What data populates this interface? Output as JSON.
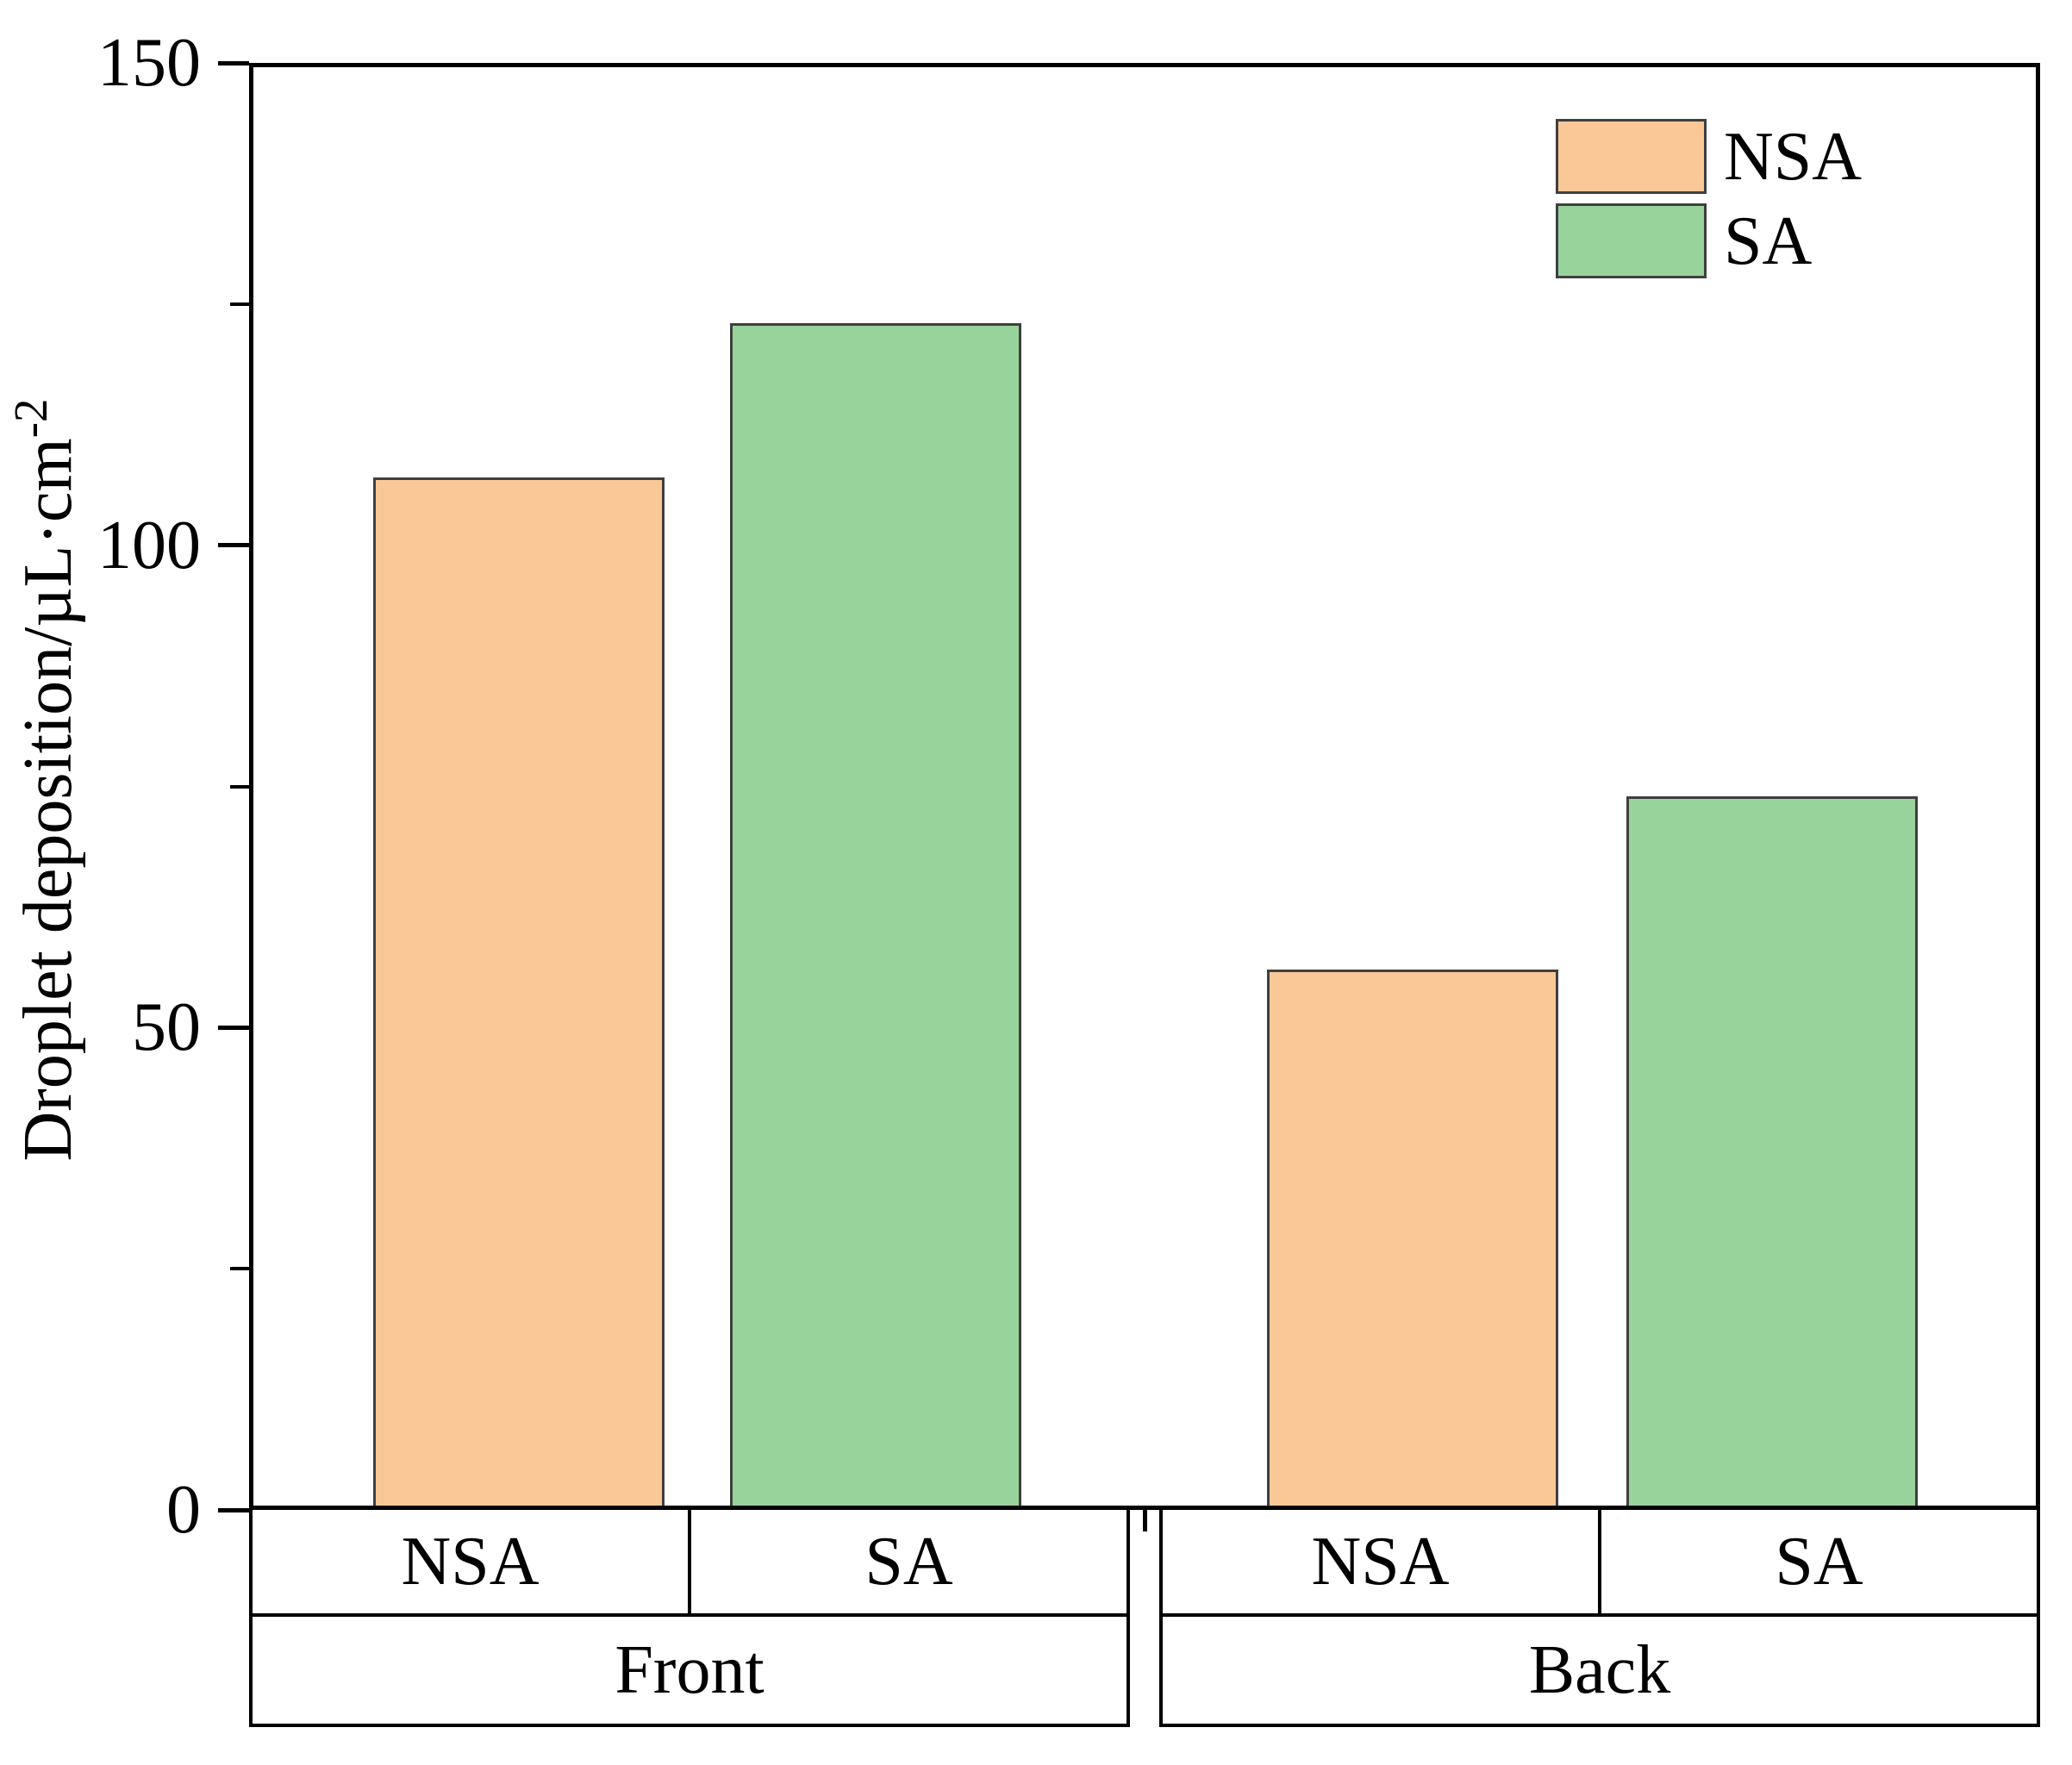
{
  "chart_data": {
    "type": "bar",
    "title": "",
    "ylabel": "Droplet deposition/µL·cm⁻²",
    "ylabel_base": "Droplet deposition/µL·cm",
    "ylabel_exponent": "-2",
    "ylim": [
      0,
      150
    ],
    "y_major_ticks": [
      0,
      50,
      100,
      150
    ],
    "y_minor_ticks": [
      25,
      75,
      125
    ],
    "grid": false,
    "groups": [
      "Front",
      "Back"
    ],
    "categories": [
      "NSA",
      "SA"
    ],
    "series": [
      {
        "name": "NSA",
        "color": "#FAC896",
        "values": [
          107,
          56
        ]
      },
      {
        "name": "SA",
        "color": "#99D39C",
        "values": [
          123,
          74
        ]
      }
    ],
    "legend": {
      "position": "top-right",
      "entries": [
        "NSA",
        "SA"
      ]
    },
    "x_axis_table": {
      "category_row": [
        "NSA",
        "SA",
        "NSA",
        "SA"
      ],
      "group_row": [
        "Front",
        "Back"
      ]
    },
    "bar_edge_color": "#3F3F3F",
    "axis_color": "#000000"
  }
}
